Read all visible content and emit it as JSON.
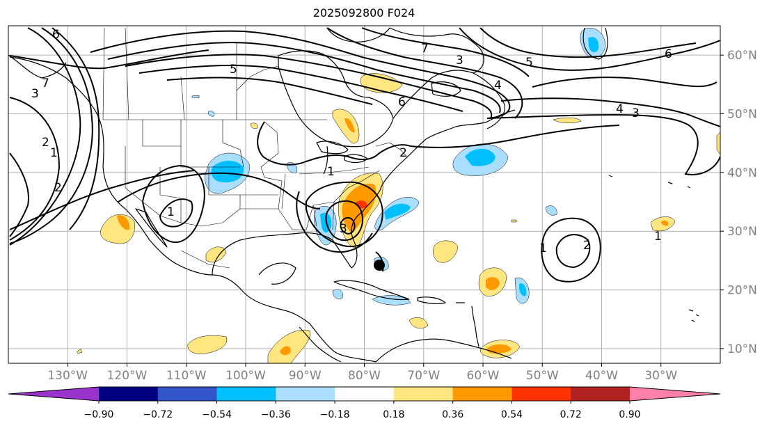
{
  "title": "2025092800 F024",
  "map": {
    "projection": "plate-carree",
    "lon_range": [
      -140,
      -20
    ],
    "lat_range": [
      7.5,
      65
    ],
    "lon_labels": [
      "130°W",
      "120°W",
      "110°W",
      "100°W",
      "90°W",
      "80°W",
      "70°W",
      "60°W",
      "50°W",
      "40°W",
      "30°W"
    ],
    "lat_labels": [
      "60°N",
      "50°N",
      "40°N",
      "30°N",
      "20°N",
      "10°N"
    ],
    "gridlines": true,
    "contour_labels": [
      "6",
      "7",
      "1",
      "2",
      "5",
      "6",
      "4",
      "3",
      "6",
      "7",
      "1",
      "1",
      "2",
      "3",
      "1",
      "1",
      "2",
      "3",
      "3",
      "2",
      "5",
      "4"
    ]
  },
  "colorbar": {
    "tick_labels": [
      "−0.90",
      "−0.72",
      "−0.54",
      "−0.36",
      "−0.18",
      "0.18",
      "0.36",
      "0.54",
      "0.72",
      "0.90"
    ],
    "colors": [
      "#9933cc",
      "#000080",
      "#3355cc",
      "#00bfff",
      "#aadeff",
      "#ffffff",
      "#ffe680",
      "#ff9900",
      "#ff3300",
      "#b22222",
      "#ff80aa"
    ],
    "extend": "both"
  }
}
